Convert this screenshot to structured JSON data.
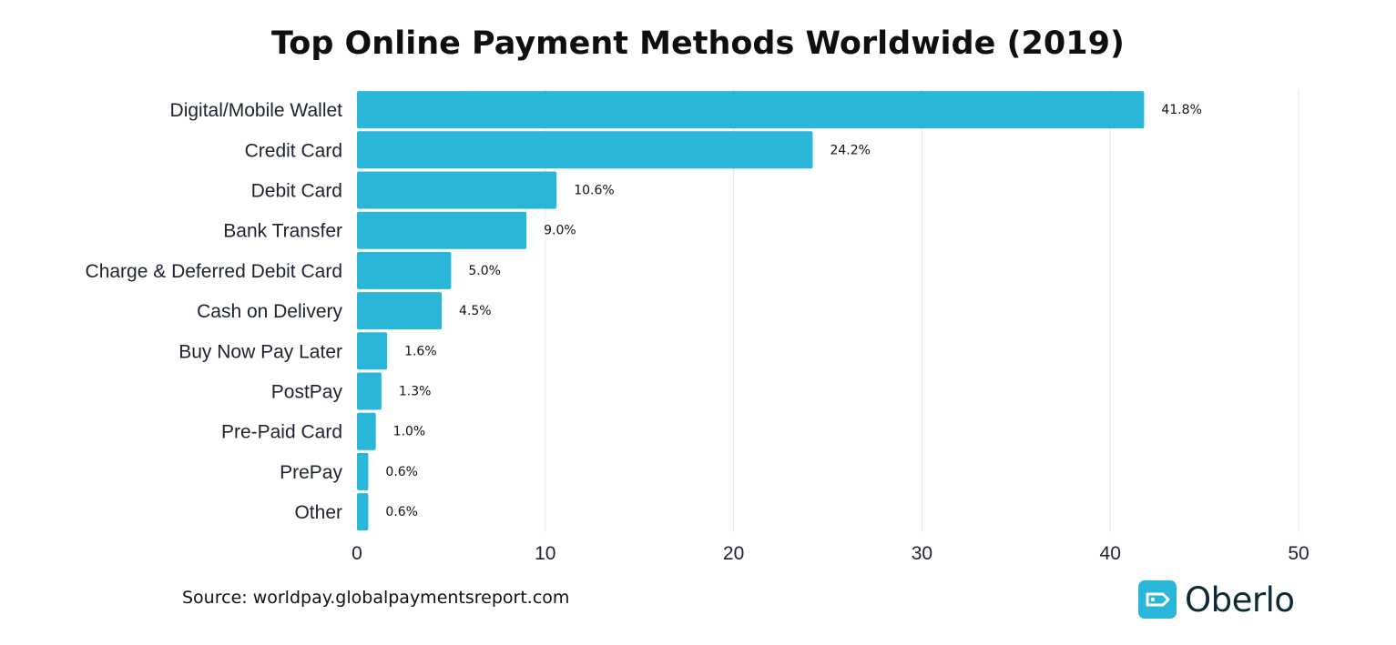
{
  "chart_data": {
    "type": "bar",
    "orientation": "horizontal",
    "title": "Top Online Payment Methods Worldwide (2019)",
    "xlabel": "",
    "ylabel": "",
    "xlim": [
      0,
      50
    ],
    "xticks": [
      "0",
      "10",
      "20",
      "30",
      "40",
      "50"
    ],
    "grid": true,
    "legend": "none",
    "bar_color": "#29b6d9",
    "categories": [
      "Digital/Mobile Wallet",
      "Credit Card",
      "Debit Card",
      "Bank Transfer",
      "Charge & Deferred Debit Card",
      "Cash on Delivery",
      "Buy Now Pay Later",
      "PostPay",
      "Pre-Paid Card",
      "PrePay",
      "Other"
    ],
    "values": [
      41.8,
      24.2,
      10.6,
      9.0,
      5.0,
      4.5,
      1.6,
      1.3,
      1.0,
      0.6,
      0.6
    ],
    "data_labels": [
      "41.8%",
      "24.2%",
      "10.6%",
      "9.0%",
      "5.0%",
      "4.5%",
      "1.6%",
      "1.3%",
      "1.0%",
      "0.6%",
      "0.6%"
    ]
  },
  "footer": {
    "source": "Source: worldpay.globalpaymentsreport.com"
  },
  "brand": {
    "name": "Oberlo",
    "icon": "tag-icon",
    "color": "#29b6d9"
  }
}
